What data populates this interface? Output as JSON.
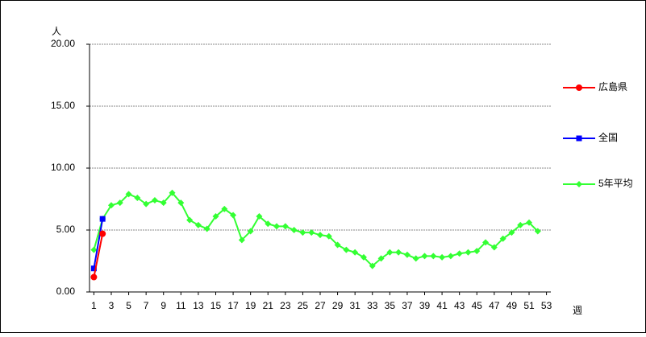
{
  "chart_data": {
    "type": "line",
    "y_label": "人",
    "x_label": "週",
    "x": [
      1,
      2,
      3,
      4,
      5,
      6,
      7,
      8,
      9,
      10,
      11,
      12,
      13,
      14,
      15,
      16,
      17,
      18,
      19,
      20,
      21,
      22,
      23,
      24,
      25,
      26,
      27,
      28,
      29,
      30,
      31,
      32,
      33,
      34,
      35,
      36,
      37,
      38,
      39,
      40,
      41,
      42,
      43,
      44,
      45,
      46,
      47,
      48,
      49,
      50,
      51,
      52,
      53
    ],
    "xlim": [
      0.5,
      53.5
    ],
    "xticks": [
      1,
      3,
      5,
      7,
      9,
      11,
      13,
      15,
      17,
      19,
      21,
      23,
      25,
      27,
      29,
      31,
      33,
      35,
      37,
      39,
      41,
      43,
      45,
      47,
      49,
      51,
      53
    ],
    "ylim": [
      0,
      20
    ],
    "yticks": [
      {
        "value": 0,
        "label": "0.00"
      },
      {
        "value": 5,
        "label": "5.00"
      },
      {
        "value": 10,
        "label": "10.00"
      },
      {
        "value": 15,
        "label": "15.00"
      },
      {
        "value": 20,
        "label": "20.00"
      }
    ],
    "grid": true,
    "legend": "right",
    "series": [
      {
        "name": "広島県",
        "color": "#ff0000",
        "marker": "circle",
        "values": [
          1.2,
          4.7,
          null,
          null,
          null,
          null,
          null,
          null,
          null,
          null,
          null,
          null,
          null,
          null,
          null,
          null,
          null,
          null,
          null,
          null,
          null,
          null,
          null,
          null,
          null,
          null,
          null,
          null,
          null,
          null,
          null,
          null,
          null,
          null,
          null,
          null,
          null,
          null,
          null,
          null,
          null,
          null,
          null,
          null,
          null,
          null,
          null,
          null,
          null,
          null,
          null,
          null,
          null
        ]
      },
      {
        "name": "全国",
        "color": "#0000ff",
        "marker": "square",
        "values": [
          1.9,
          5.9,
          null,
          null,
          null,
          null,
          null,
          null,
          null,
          null,
          null,
          null,
          null,
          null,
          null,
          null,
          null,
          null,
          null,
          null,
          null,
          null,
          null,
          null,
          null,
          null,
          null,
          null,
          null,
          null,
          null,
          null,
          null,
          null,
          null,
          null,
          null,
          null,
          null,
          null,
          null,
          null,
          null,
          null,
          null,
          null,
          null,
          null,
          null,
          null,
          null,
          null,
          null
        ]
      },
      {
        "name": "5年平均",
        "color": "#33ff33",
        "marker": "diamond",
        "values": [
          3.4,
          5.9,
          7.0,
          7.2,
          7.9,
          7.6,
          7.1,
          7.4,
          7.2,
          8.0,
          7.2,
          5.8,
          5.4,
          5.1,
          6.1,
          6.7,
          6.2,
          4.2,
          4.9,
          6.1,
          5.5,
          5.3,
          5.3,
          5.0,
          4.8,
          4.8,
          4.6,
          4.5,
          3.8,
          3.4,
          3.2,
          2.8,
          2.1,
          2.7,
          3.2,
          3.2,
          3.0,
          2.7,
          2.9,
          2.9,
          2.8,
          2.9,
          3.1,
          3.2,
          3.3,
          4.0,
          3.6,
          4.3,
          4.8,
          5.4,
          5.6,
          4.9,
          null
        ]
      }
    ]
  }
}
